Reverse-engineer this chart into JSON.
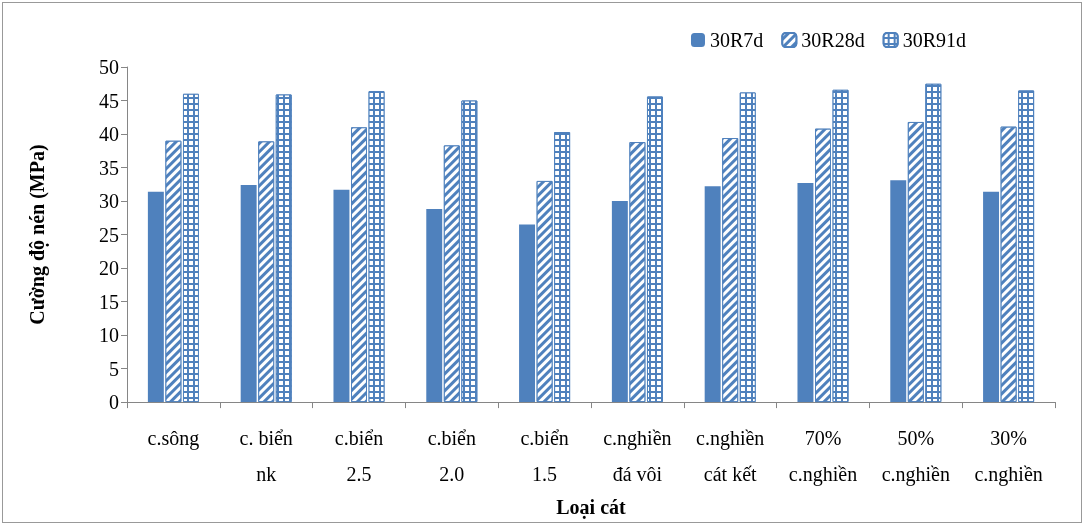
{
  "chart_data": {
    "type": "bar",
    "xlabel": "Loại cát",
    "ylabel": "Cường độ nén (MPa)",
    "categories": [
      "c.sông",
      "c. biển\nnk",
      "c.biển\n2.5",
      "c.biển\n2.0",
      "c.biển\n1.5",
      "c.nghiền\nđá vôi",
      "c.nghiền\ncát kết",
      "70%\nc.nghiền",
      "50%\nc.nghiền",
      "30%\nc.nghiền"
    ],
    "series": [
      {
        "name": "30R7d",
        "color": "#4f81bd",
        "values": [
          31.4,
          32.4,
          31.7,
          28.8,
          26.5,
          30.0,
          32.2,
          32.7,
          33.1,
          31.4
        ]
      },
      {
        "name": "30R28d",
        "color": "#4f81bd",
        "values": [
          39.0,
          38.9,
          41.0,
          38.3,
          33.0,
          38.8,
          39.4,
          40.8,
          41.8,
          41.1
        ]
      },
      {
        "name": "30R91d",
        "color": "#4f81bd",
        "values": [
          46.0,
          45.9,
          46.4,
          45.0,
          40.3,
          45.6,
          46.2,
          46.6,
          47.5,
          46.5
        ]
      }
    ],
    "ylim": [
      0,
      50
    ],
    "yticks": [
      0,
      5,
      10,
      15,
      20,
      25,
      30,
      35,
      40,
      45,
      50
    ],
    "grid": false,
    "legend": "top right"
  }
}
